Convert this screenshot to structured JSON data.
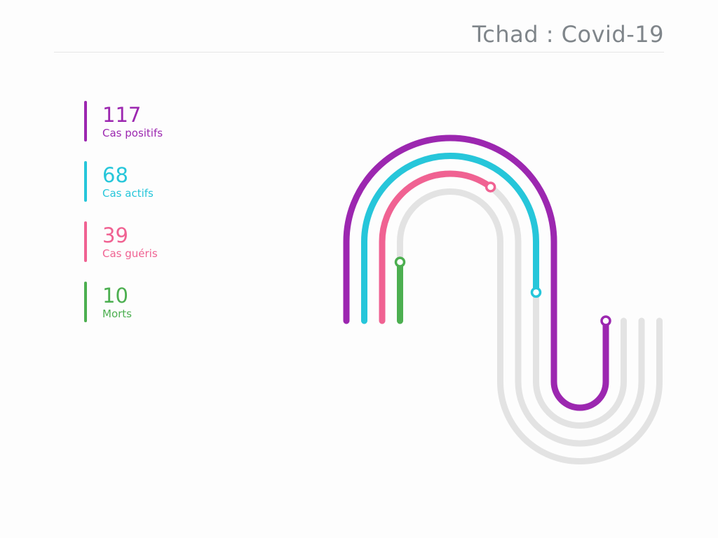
{
  "title": "Tchad : Covid-19",
  "chart_data": {
    "type": "radial-track",
    "title": "Tchad : Covid-19",
    "max": 117,
    "series": [
      {
        "value": "117",
        "label": "Cas positifs",
        "number": 117,
        "color": "#9c27b0"
      },
      {
        "value": "68",
        "label": "Cas actifs",
        "number": 68,
        "color": "#26c6da"
      },
      {
        "value": "39",
        "label": "Cas guéris",
        "number": 39,
        "color": "#f06292"
      },
      {
        "value": "10",
        "label": "Morts",
        "number": 10,
        "color": "#4caf50"
      }
    ],
    "track_color": "#e3e3e3"
  }
}
